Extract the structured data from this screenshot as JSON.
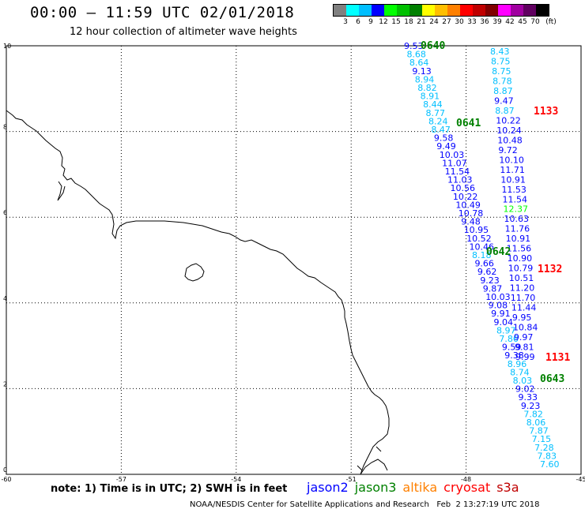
{
  "header": {
    "title": "00:00 – 11:59 UTC 02/01/2018",
    "subtitle": "12 hour collection of altimeter wave heights"
  },
  "legend": {
    "colors": [
      "#808080",
      "#00ffff",
      "#00bfff",
      "#0000ff",
      "#00ff00",
      "#00c000",
      "#008000",
      "#ffff00",
      "#ffbf00",
      "#ff8000",
      "#ff0000",
      "#c00000",
      "#800000",
      "#ff00ff",
      "#a000a0",
      "#600060",
      "#000000"
    ],
    "labels": [
      "3",
      "6",
      "9",
      "12",
      "15",
      "18",
      "21",
      "24",
      "27",
      "30",
      "33",
      "36",
      "39",
      "42",
      "45",
      "70"
    ],
    "unit": "(ft)"
  },
  "axes": {
    "x_ticks": [
      "-60",
      "-57",
      "-54",
      "-51",
      "-48",
      "-45"
    ],
    "y_ticks": [
      "10",
      "8",
      "6",
      "4",
      "2",
      "0"
    ],
    "lon_range": [
      -60,
      -45
    ],
    "lat_range": [
      0,
      10
    ],
    "grid": true
  },
  "passes": {
    "west_times": [
      "0640",
      "0641",
      "0642",
      "0643"
    ],
    "east_times": [
      "1133",
      "1132",
      "1131"
    ]
  },
  "west_track": [
    "9.53",
    "8.68",
    "8.64",
    "9.13",
    "8.94",
    "8.82",
    "8.91",
    "8.44",
    "8.77",
    "8.24",
    "8.47",
    "9.58",
    "9.49",
    "10.03",
    "11.07",
    "11.54",
    "11.03",
    "10.56",
    "10.22",
    "10.49",
    "10.78",
    "9.48",
    "10.95",
    "10.52",
    "10.46",
    "8.18",
    "9.66",
    "9.62",
    "9.23",
    "9.87",
    "10.03",
    "9.08",
    "9.91",
    "9.04",
    "8.97",
    "7.86",
    "9.59",
    "9.38",
    "8.96",
    "8.74",
    "8.03",
    "9.02",
    "9.33",
    "9.23",
    "7.82",
    "8.06",
    "7.87",
    "7.15",
    "7.28",
    "7.83",
    "7.60"
  ],
  "east_track": [
    "8.43",
    "8.75",
    "8.75",
    "8.78",
    "8.87",
    "9.47",
    "8.87",
    "10.22",
    "10.24",
    "10.48",
    "9.72",
    "10.10",
    "11.71",
    "10.91",
    "11.53",
    "11.54",
    "12.37",
    "10.63",
    "11.76",
    "10.91",
    "11.56",
    "10.90",
    "10.79",
    "10.51",
    "11.20",
    "11.70",
    "11.44",
    "9.95",
    "10.84",
    "9.97",
    "9.81",
    "9.99"
  ],
  "footer": {
    "note": "note: 1) Time is in UTC; 2) SWH is in feet",
    "satellites": [
      {
        "name": "jason2",
        "color": "#0000ff"
      },
      {
        "name": "jason3",
        "color": "#008000"
      },
      {
        "name": "altika",
        "color": "#ff8000"
      },
      {
        "name": "cryosat",
        "color": "#ff0000"
      },
      {
        "name": "s3a",
        "color": "#c00000"
      }
    ],
    "credit": "NOAA/NESDIS Center for Satellite Applications and Research   Feb  2 13:27:19 UTC 2018"
  }
}
